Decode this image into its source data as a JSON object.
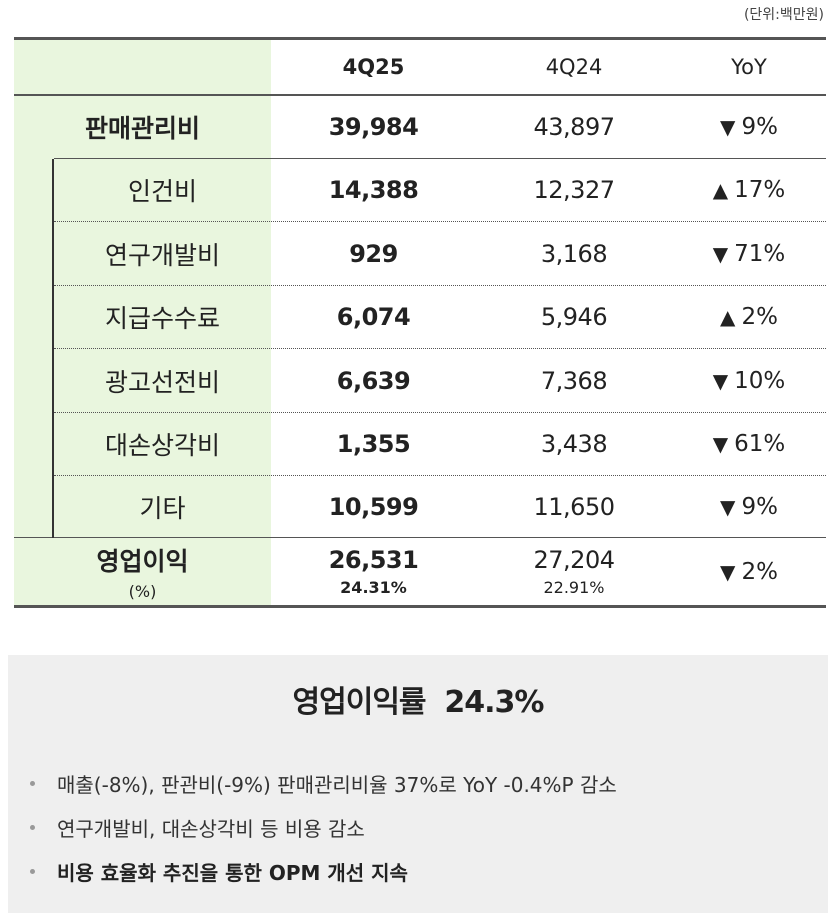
{
  "unit": "(단위:백만원)",
  "header": {
    "c0": "",
    "c1": "4Q25",
    "c2": "4Q24",
    "c3": "YoY"
  },
  "total": {
    "label": "판매관리비",
    "v1": "39,984",
    "v2": "43,897",
    "dir": "▼",
    "v3": "9%"
  },
  "items": [
    {
      "label": "인건비",
      "v1": "14,388",
      "v2": "12,327",
      "dir": "▲",
      "v3": "17%"
    },
    {
      "label": "연구개발비",
      "v1": "929",
      "v2": "3,168",
      "dir": "▼",
      "v3": "71%"
    },
    {
      "label": "지급수수료",
      "v1": "6,074",
      "v2": "5,946",
      "dir": "▲",
      "v3": "2%"
    },
    {
      "label": "광고선전비",
      "v1": "6,639",
      "v2": "7,368",
      "dir": "▼",
      "v3": "10%"
    },
    {
      "label": "대손상각비",
      "v1": "1,355",
      "v2": "3,438",
      "dir": "▼",
      "v3": "61%"
    },
    {
      "label": "기타",
      "v1": "10,599",
      "v2": "11,650",
      "dir": "▼",
      "v3": "9%"
    }
  ],
  "op": {
    "label": "영업이익",
    "sublabel": "(%)",
    "v1": "26,531",
    "v1_pct": "24.31%",
    "v2": "27,204",
    "v2_pct": "22.91%",
    "dir": "▼",
    "v3": "2%"
  },
  "summary": {
    "title": "영업이익률  24.3%",
    "bullets": [
      "매출(-8%), 판관비(-9%) 판매관리비율 37%로 YoY -0.4%P 감소",
      "연구개발비, 대손상각비 등 비용 감소",
      "비용 효율화 추진을 통한 OPM 개선 지속"
    ]
  }
}
